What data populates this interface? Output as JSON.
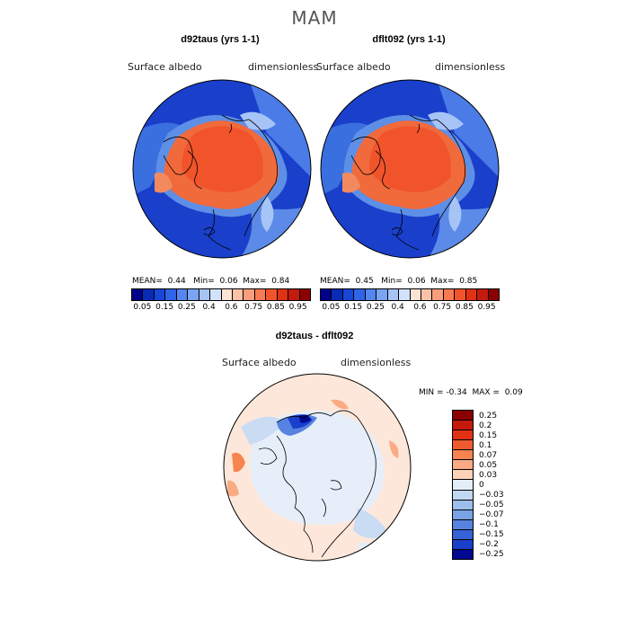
{
  "season": "MAM",
  "panels": [
    {
      "title": "d92taus (yrs 1-1)",
      "variable": "Surface albedo",
      "units": "dimensionless",
      "mean_label": "MEAN=",
      "mean_value": "0.44",
      "min_label": "Min=",
      "min_value": "0.06",
      "max_label": "Max=",
      "max_value": "0.84"
    },
    {
      "title": "dflt092 (yrs 1-1)",
      "variable": "Surface albedo",
      "units": "dimensionless",
      "mean_label": "MEAN=",
      "mean_value": "0.45",
      "min_label": "Min=",
      "min_value": "0.06",
      "max_label": "Max=",
      "max_value": "0.85"
    }
  ],
  "top_colorbar": {
    "colors": [
      "#00008b",
      "#0a2bb5",
      "#1747d6",
      "#2f64e6",
      "#5585ee",
      "#7ba4f3",
      "#a7c4f7",
      "#d3e2fb",
      "#fde3d5",
      "#fcc2a8",
      "#fb9e7d",
      "#f77a53",
      "#f1542b",
      "#e03212",
      "#c41a0c",
      "#8b0000"
    ],
    "tick_labels": [
      "0.05",
      "0.15",
      "0.25",
      "0.4",
      "0.6",
      "0.75",
      "0.85",
      "0.95"
    ]
  },
  "diff_panel": {
    "title": "d92taus - dflt092",
    "variable": "Surface albedo",
    "units": "dimensionless",
    "min_label": "MIN =",
    "min_value": "-0.34",
    "max_label": "MAX =",
    "max_value": "0.09"
  },
  "diff_colorbar": {
    "colors": [
      "#8b0000",
      "#c41a0c",
      "#e03212",
      "#f05a2e",
      "#f7844f",
      "#fbab84",
      "#fdd3b8",
      "#e4eef9",
      "#c2d8f2",
      "#9dbdec",
      "#7aa2e6",
      "#5783e0",
      "#3563d6",
      "#1a3fcb",
      "#00098f"
    ],
    "tick_labels": [
      "0.25",
      "0.2",
      "0.15",
      "0.1",
      "0.07",
      "0.05",
      "0.03",
      "0",
      "−0.03",
      "−0.05",
      "−0.07",
      "−0.1",
      "−0.15",
      "−0.2",
      "−0.25"
    ]
  }
}
